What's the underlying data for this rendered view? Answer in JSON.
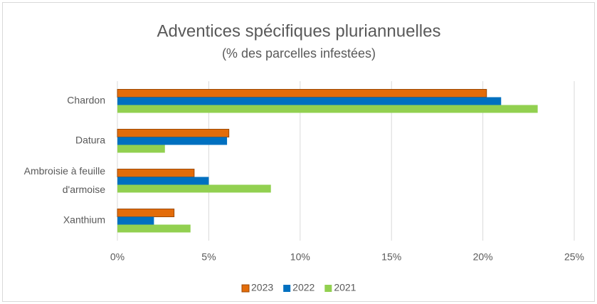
{
  "chart_data": {
    "type": "hbar",
    "title": "Adventices spécifiques pluriannuelles",
    "subtitle": "(% des parcelles infestées)",
    "categories": [
      "Chardon",
      "Datura",
      "Ambroisie à feuille d'armoise",
      "Xanthium"
    ],
    "series": [
      {
        "name": "2023",
        "color": "#e36c0a",
        "values": [
          20.2,
          6.1,
          4.2,
          3.1
        ]
      },
      {
        "name": "2022",
        "color": "#0070c0",
        "values": [
          21.0,
          6.0,
          5.0,
          2.0
        ]
      },
      {
        "name": "2021",
        "color": "#92d050",
        "values": [
          23.0,
          2.6,
          8.4,
          4.0
        ]
      }
    ],
    "xlim": [
      0,
      25
    ],
    "xticks": [
      {
        "value": 0,
        "label": "0%"
      },
      {
        "value": 5,
        "label": "5%"
      },
      {
        "value": 10,
        "label": "10%"
      },
      {
        "value": 15,
        "label": "15%"
      },
      {
        "value": 20,
        "label": "20%"
      },
      {
        "value": 25,
        "label": "25%"
      }
    ],
    "grid": true,
    "legend": "bottom"
  }
}
